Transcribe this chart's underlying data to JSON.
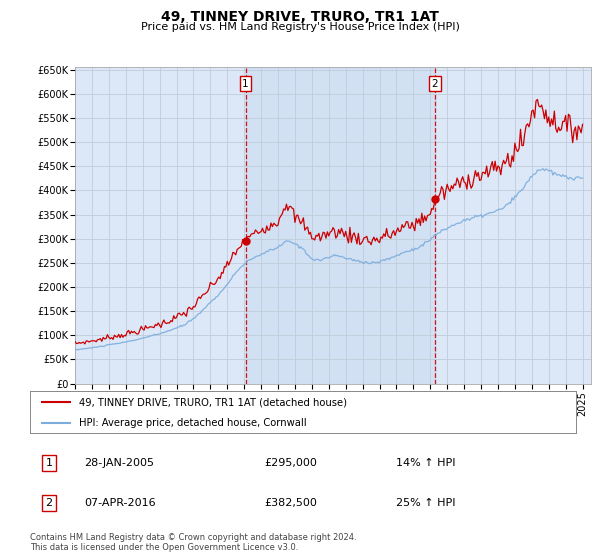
{
  "title": "49, TINNEY DRIVE, TRURO, TR1 1AT",
  "subtitle": "Price paid vs. HM Land Registry's House Price Index (HPI)",
  "fig_bg": "#ffffff",
  "plot_bg": "#dce8f8",
  "grid_color": "#c8d8e8",
  "red_color": "#cc0000",
  "blue_color": "#7aacdc",
  "purchase1_x": 2005.08,
  "purchase1_price": 295000,
  "purchase1_date_label": "28-JAN-2005",
  "purchase1_label": "£295,000",
  "purchase1_pct": "14% ↑ HPI",
  "purchase2_x": 2016.27,
  "purchase2_price": 382500,
  "purchase2_date_label": "07-APR-2016",
  "purchase2_label": "£382,500",
  "purchase2_pct": "25% ↑ HPI",
  "xmin": 1995,
  "xmax": 2025.5,
  "ymin": 0,
  "ymax": 650000,
  "legend_label1": "49, TINNEY DRIVE, TRURO, TR1 1AT (detached house)",
  "legend_label2": "HPI: Average price, detached house, Cornwall",
  "footnote_line1": "Contains HM Land Registry data © Crown copyright and database right 2024.",
  "footnote_line2": "This data is licensed under the Open Government Licence v3.0."
}
